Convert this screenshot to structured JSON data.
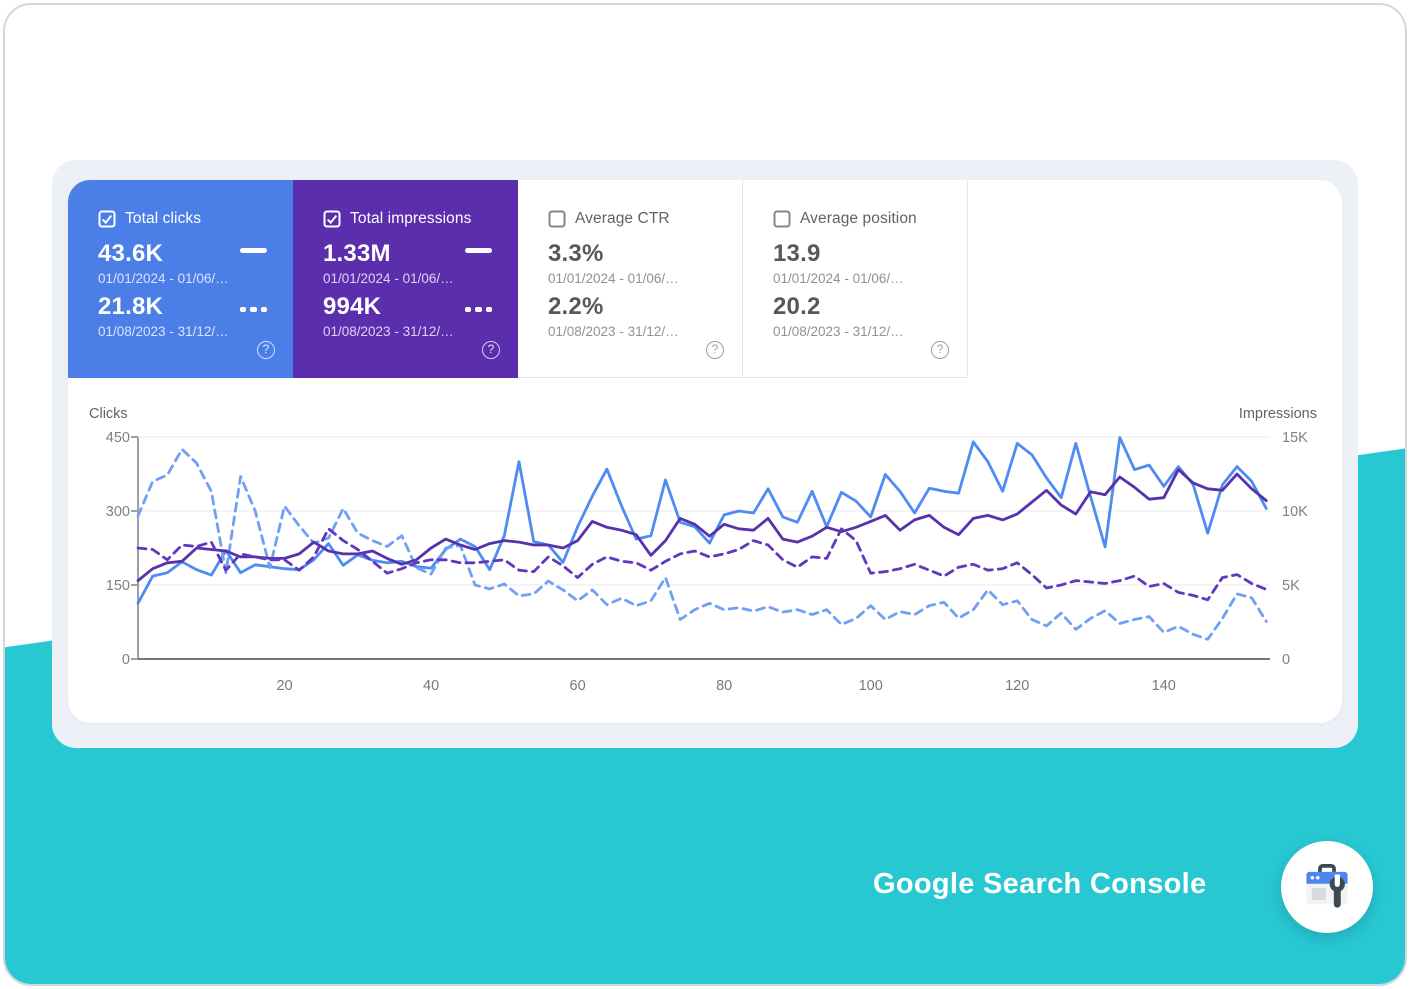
{
  "colors": {
    "teal": "#28c8d3",
    "panel": "#edf1f7",
    "card_blue": "#4c7ee8",
    "card_purple": "#5b2ead"
  },
  "cards": [
    {
      "label": "Total clicks",
      "checked": true,
      "bg": "#4c7ee8",
      "value_current": "43.6K",
      "range_current": "01/01/2024 - 01/06/…",
      "value_previous": "21.8K",
      "range_previous": "01/08/2023 - 31/12/…"
    },
    {
      "label": "Total impressions",
      "checked": true,
      "bg": "#5b2ead",
      "value_current": "1.33M",
      "range_current": "01/01/2024 - 01/06/…",
      "value_previous": "994K",
      "range_previous": "01/08/2023 - 31/12/…"
    },
    {
      "label": "Average CTR",
      "checked": false,
      "value_current": "3.3%",
      "range_current": "01/01/2024 - 01/06/…",
      "value_previous": "2.2%",
      "range_previous": "01/08/2023 - 31/12/…"
    },
    {
      "label": "Average position",
      "checked": false,
      "value_current": "13.9",
      "range_current": "01/01/2024 - 01/06/…",
      "value_previous": "20.2",
      "range_previous": "01/08/2023 - 31/12/…"
    }
  ],
  "footer": {
    "brand": "Google Search Console"
  },
  "chart_data": {
    "type": "line",
    "x_start": 0,
    "x_step": 2,
    "x_max": 154.5,
    "x_ticks": [
      20,
      40,
      60,
      80,
      100,
      120,
      140
    ],
    "left_axis": {
      "title": "Clicks",
      "ticks": [
        0,
        150,
        300,
        450
      ],
      "max": 450
    },
    "right_axis": {
      "title": "Impressions",
      "ticks": [
        "0",
        "5K",
        "10K",
        "15K"
      ],
      "tick_values": [
        0,
        5,
        10,
        15
      ],
      "max": 15
    },
    "grid_color": "#e8eaed",
    "legend_position": "none",
    "series": [
      {
        "name": "Clicks 01/01/2024 - 01/06 (current)",
        "axis": "left",
        "style": "solid",
        "color": "#4e8bf2",
        "values": [
          113,
          168,
          175,
          197,
          181,
          170,
          220,
          175,
          191,
          187,
          183,
          181,
          201,
          234,
          190,
          211,
          200,
          195,
          198,
          187,
          184,
          222,
          243,
          228,
          181,
          250,
          400,
          238,
          231,
          196,
          268,
          330,
          385,
          310,
          243,
          250,
          363,
          277,
          268,
          235,
          292,
          300,
          296,
          345,
          288,
          277,
          340,
          268,
          338,
          320,
          288,
          374,
          340,
          296,
          346,
          340,
          336,
          440,
          400,
          340,
          437,
          414,
          367,
          327,
          437,
          330,
          227,
          449,
          384,
          393,
          350,
          390,
          354,
          255,
          353,
          390,
          360,
          305
        ]
      },
      {
        "name": "Clicks 01/08/2023 - 31/12 (previous)",
        "axis": "left",
        "style": "dashed",
        "color": "#6fa0f4",
        "values": [
          290,
          360,
          373,
          425,
          397,
          340,
          175,
          370,
          300,
          185,
          310,
          270,
          235,
          245,
          305,
          255,
          240,
          228,
          250,
          185,
          172,
          225,
          230,
          150,
          142,
          152,
          128,
          132,
          158,
          140,
          118,
          140,
          110,
          123,
          108,
          118,
          165,
          80,
          100,
          113,
          100,
          104,
          97,
          106,
          95,
          100,
          90,
          100,
          70,
          82,
          108,
          80,
          96,
          90,
          108,
          115,
          83,
          100,
          140,
          110,
          118,
          80,
          67,
          93,
          60,
          82,
          98,
          72,
          80,
          86,
          54,
          66,
          50,
          40,
          82,
          132,
          124,
          76
        ]
      },
      {
        "name": "Impressions (K) 01/01/2024 - 01/06 (current)",
        "axis": "right",
        "style": "solid",
        "color": "#5632ab",
        "values": [
          5.3,
          6.1,
          6.5,
          6.6,
          7.5,
          7.4,
          7.3,
          6.9,
          6.9,
          6.8,
          6.8,
          7.1,
          7.9,
          7.3,
          7.1,
          7.1,
          7.3,
          6.8,
          6.4,
          6.7,
          7.5,
          8.1,
          7.7,
          7.4,
          7.8,
          8.0,
          7.9,
          7.7,
          7.7,
          7.5,
          8.0,
          9.3,
          8.9,
          8.7,
          8.4,
          7.0,
          8.0,
          9.5,
          9.1,
          8.3,
          9.1,
          8.8,
          8.7,
          9.5,
          8.1,
          7.9,
          8.3,
          8.9,
          8.6,
          8.9,
          9.3,
          9.7,
          8.7,
          9.4,
          9.7,
          8.9,
          8.4,
          9.5,
          9.7,
          9.4,
          9.8,
          10.6,
          11.4,
          10.4,
          9.8,
          11.3,
          11.1,
          12.3,
          11.6,
          10.8,
          10.9,
          12.8,
          11.9,
          11.5,
          11.4,
          12.5,
          11.5,
          10.7
        ]
      },
      {
        "name": "Impressions (K) 01/08/2023 - 31/12 (previous)",
        "axis": "right",
        "style": "dashed",
        "color": "#6138bd",
        "values": [
          7.5,
          7.4,
          6.7,
          7.7,
          7.6,
          7.9,
          6.0,
          7.1,
          6.9,
          6.7,
          6.7,
          6.0,
          6.9,
          8.8,
          8.0,
          7.4,
          6.6,
          5.8,
          6.1,
          6.5,
          6.7,
          6.7,
          6.5,
          6.5,
          6.6,
          6.7,
          6.0,
          5.9,
          6.9,
          6.3,
          5.5,
          6.4,
          6.9,
          6.6,
          6.5,
          6.0,
          6.6,
          7.1,
          7.3,
          6.9,
          7.1,
          7.4,
          8.0,
          7.7,
          6.7,
          6.2,
          6.9,
          6.8,
          8.8,
          8.0,
          5.8,
          5.9,
          6.1,
          6.4,
          6.0,
          5.6,
          6.2,
          6.4,
          6.0,
          6.1,
          6.5,
          5.7,
          4.8,
          5.0,
          5.3,
          5.2,
          5.1,
          5.3,
          5.6,
          4.9,
          5.1,
          4.5,
          4.3,
          4.0,
          5.5,
          5.7,
          5.1,
          4.7
        ]
      }
    ]
  }
}
